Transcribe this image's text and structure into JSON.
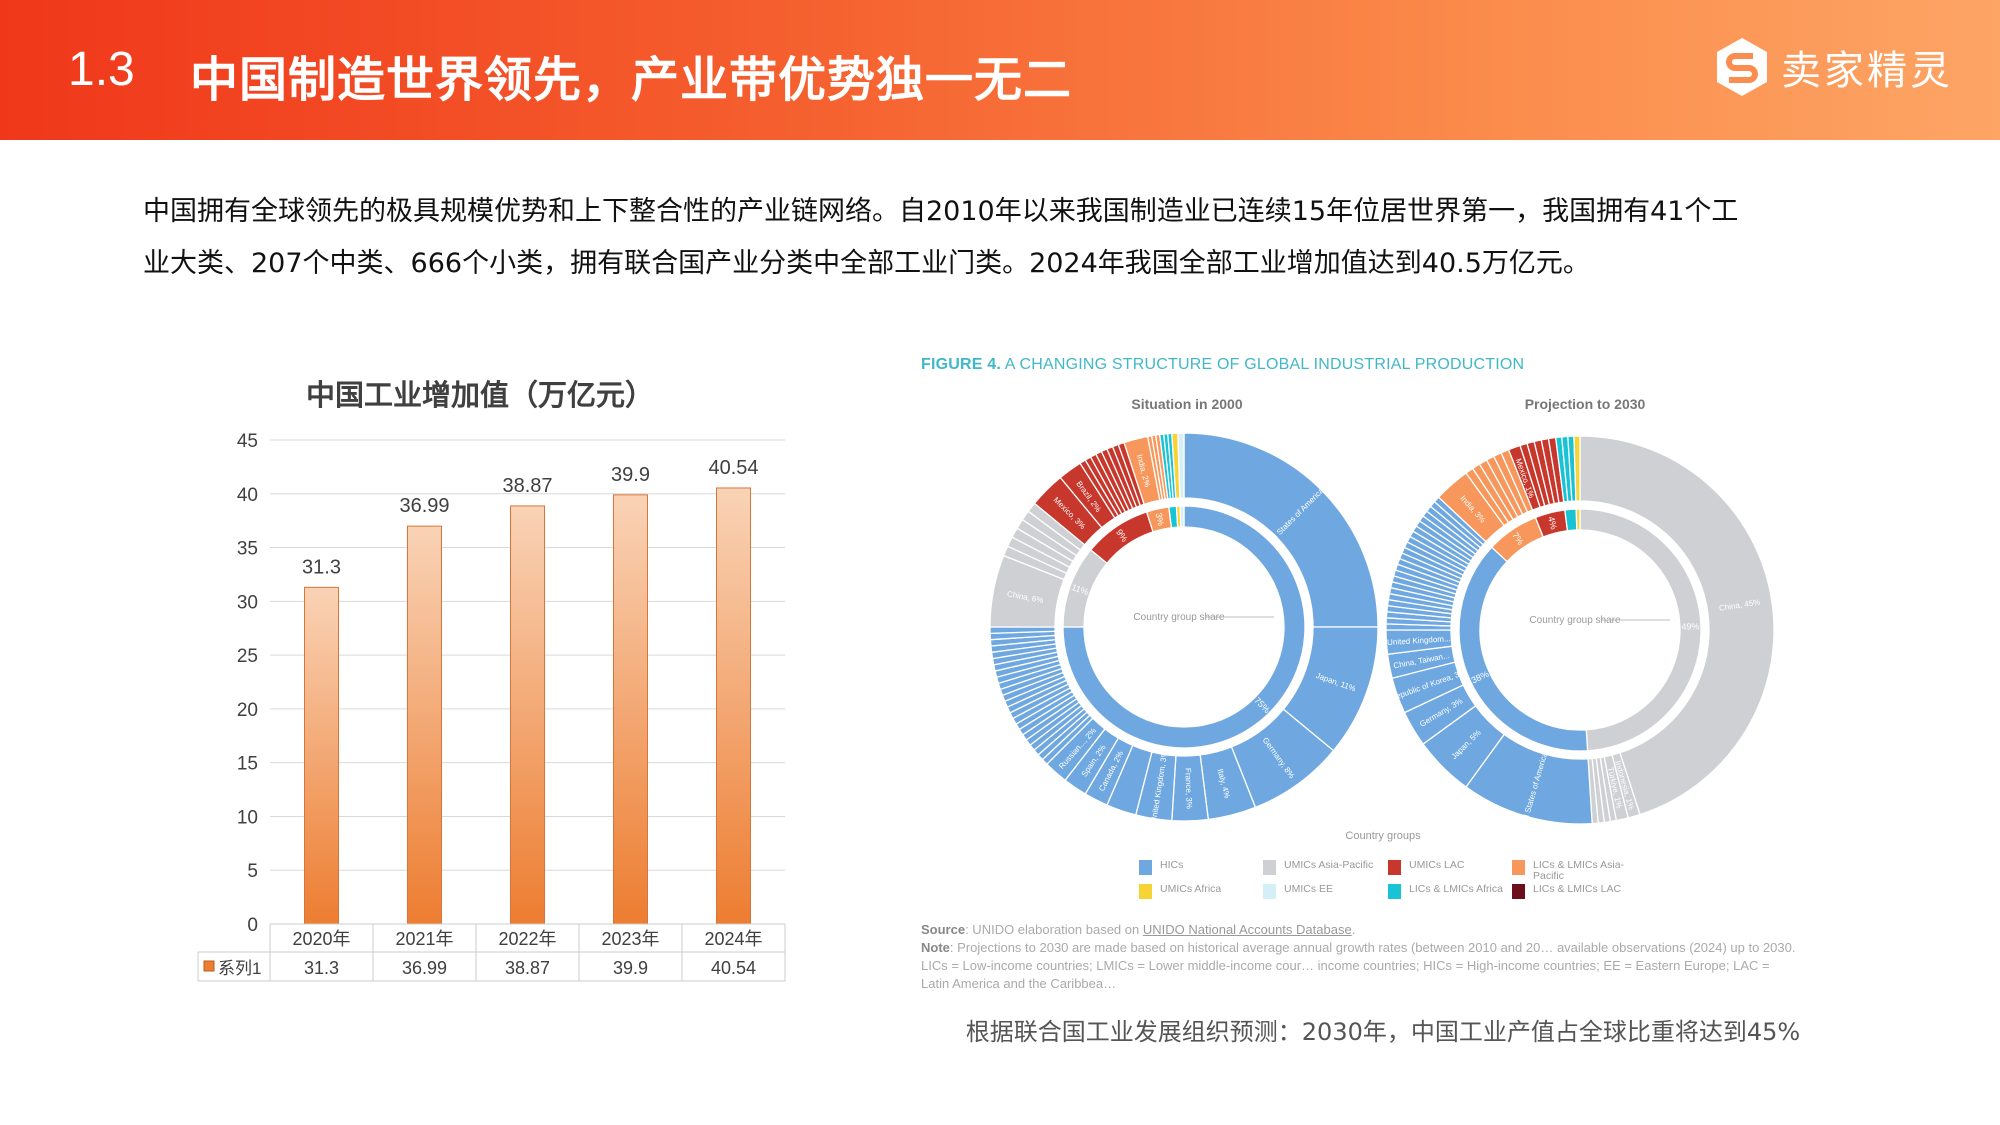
{
  "header": {
    "number": "1.3",
    "title": "中国制造世界领先，产业带优势独一无二",
    "logo_text": "卖家精灵"
  },
  "intro": {
    "line1": "中国拥有全球领先的极具规模优势和上下整合性的产业链网络。自2010年以来我国制造业已连续15年位居世界第一，我国拥有41个工",
    "line2": "业大类、207个中类、666个小类，拥有联合国产业分类中全部工业门类。2024年我国全部工业增加值达到40.5万亿元。"
  },
  "chart_data": [
    {
      "type": "bar",
      "title": "中国工业增加值（万亿元）",
      "categories": [
        "2020年",
        "2021年",
        "2022年",
        "2023年",
        "2024年"
      ],
      "series": [
        {
          "name": "系列1",
          "values": [
            31.3,
            36.99,
            38.87,
            39.9,
            40.54
          ]
        }
      ],
      "value_labels": [
        "31.3",
        "36.99",
        "38.87",
        "39.9",
        "40.54"
      ],
      "ylim": [
        0,
        45
      ],
      "yticks": [
        "0",
        "5",
        "10",
        "15",
        "20",
        "25",
        "30",
        "35",
        "40",
        "45"
      ],
      "grid": true,
      "legend": "data-table",
      "colors": {
        "bar_top": "#f9d3b6",
        "bar_bottom": "#ed7d31"
      }
    },
    {
      "type": "pie",
      "title": "Situation in 2000",
      "center_label": "Country group share",
      "inner": [
        {
          "group": "HICs",
          "value": 75,
          "label": "75%"
        },
        {
          "group": "UMICs Asia-Pacific",
          "value": 11,
          "label": "11%"
        },
        {
          "group": "UMICs LAC",
          "value": 9,
          "label": "9%"
        },
        {
          "group": "LICs & LMICs Asia-Pacific",
          "value": 3,
          "label": "3%"
        },
        {
          "group": "LICs & LMICs Africa",
          "value": 1,
          "label": ""
        },
        {
          "group": "UMICs Africa",
          "value": 0.5,
          "label": ""
        },
        {
          "group": "UMICs EE",
          "value": 0.5,
          "label": ""
        }
      ],
      "outer": [
        {
          "group": "HICs",
          "value": 25,
          "label": "United States of America, 25%"
        },
        {
          "group": "HICs",
          "value": 11,
          "label": "Japan, 11%"
        },
        {
          "group": "HICs",
          "value": 8,
          "label": "Germany, 8%"
        },
        {
          "group": "HICs",
          "value": 4,
          "label": "Italy, 4%"
        },
        {
          "group": "HICs",
          "value": 3,
          "label": "France, 3%"
        },
        {
          "group": "HICs",
          "value": 3,
          "label": "United Kingdom, 3%"
        },
        {
          "group": "HICs",
          "value": 2.5,
          "label": ""
        },
        {
          "group": "HICs",
          "value": 2,
          "label": "Canada, 2%"
        },
        {
          "group": "HICs",
          "value": 2,
          "label": "Spain, 2%"
        },
        {
          "group": "HICs",
          "value": 2,
          "label": "Russian..., 2%"
        },
        {
          "group": "HICs",
          "value": 12.5,
          "label": "",
          "count": 24
        },
        {
          "group": "UMICs Asia-Pacific",
          "value": 6,
          "label": "China, 6%"
        },
        {
          "group": "UMICs Asia-Pacific",
          "value": 5,
          "label": "",
          "count": 6
        },
        {
          "group": "UMICs LAC",
          "value": 3,
          "label": "Mexico, 3%"
        },
        {
          "group": "UMICs LAC",
          "value": 2,
          "label": "Brazil, 2%"
        },
        {
          "group": "UMICs LAC",
          "value": 4,
          "label": "",
          "count": 8
        },
        {
          "group": "LICs & LMICs Asia-Pacific",
          "value": 2,
          "label": "India, 2%"
        },
        {
          "group": "LICs & LMICs Asia-Pacific",
          "value": 1,
          "label": "",
          "count": 3
        },
        {
          "group": "LICs & LMICs Africa",
          "value": 1,
          "label": "",
          "count": 3
        },
        {
          "group": "UMICs Africa",
          "value": 0.5,
          "label": ""
        },
        {
          "group": "UMICs EE",
          "value": 0.5,
          "label": ""
        }
      ]
    },
    {
      "type": "pie",
      "title": "Projection to 2030",
      "center_label": "Country group share",
      "inner": [
        {
          "group": "UMICs Asia-Pacific",
          "value": 49,
          "label": "49%"
        },
        {
          "group": "HICs",
          "value": 38,
          "label": "38%"
        },
        {
          "group": "LICs & LMICs Asia-Pacific",
          "value": 7,
          "label": "7%"
        },
        {
          "group": "UMICs LAC",
          "value": 4,
          "label": "4%"
        },
        {
          "group": "LICs & LMICs Africa",
          "value": 1.5,
          "label": ""
        },
        {
          "group": "UMICs Africa",
          "value": 0.5,
          "label": ""
        }
      ],
      "outer": [
        {
          "group": "UMICs Asia-Pacific",
          "value": 45,
          "label": "China, 45%"
        },
        {
          "group": "UMICs Asia-Pacific",
          "value": 1,
          "label": "Indonesia, 1%"
        },
        {
          "group": "UMICs Asia-Pacific",
          "value": 1,
          "label": "Türkiye, 1%"
        },
        {
          "group": "UMICs Asia-Pacific",
          "value": 2,
          "label": "",
          "count": 4
        },
        {
          "group": "HICs",
          "value": 11,
          "label": "United States of America, 11%"
        },
        {
          "group": "HICs",
          "value": 5,
          "label": "Japan, 5%"
        },
        {
          "group": "HICs",
          "value": 3,
          "label": "Germany, 3%"
        },
        {
          "group": "HICs",
          "value": 3,
          "label": "Republic of Korea, 3%"
        },
        {
          "group": "HICs",
          "value": 2,
          "label": "China, Taiwan..."
        },
        {
          "group": "HICs",
          "value": 2,
          "label": "United Kingdom..."
        },
        {
          "group": "HICs",
          "value": 12,
          "label": "",
          "count": 24
        },
        {
          "group": "LICs & LMICs Asia-Pacific",
          "value": 3,
          "label": "India, 3%"
        },
        {
          "group": "LICs & LMICs Asia-Pacific",
          "value": 4,
          "label": "",
          "count": 6
        },
        {
          "group": "UMICs LAC",
          "value": 1,
          "label": "Mexico, 1%"
        },
        {
          "group": "UMICs LAC",
          "value": 3,
          "label": "",
          "count": 5
        },
        {
          "group": "LICs & LMICs Africa",
          "value": 1.5,
          "label": "",
          "count": 3
        },
        {
          "group": "UMICs Africa",
          "value": 0.5,
          "label": ""
        }
      ]
    }
  ],
  "figure": {
    "title_bold": "FIGURE 4.",
    "title_rest": " A CHANGING STRUCTURE OF GLOBAL INDUSTRIAL PRODUCTION",
    "legend_title": "Country groups",
    "legend": [
      {
        "label": "HICs",
        "color": "#6fa8e0"
      },
      {
        "label": "UMICs Asia-Pacific",
        "color": "#cfd0d4"
      },
      {
        "label": "UMICs LAC",
        "color": "#c8372c"
      },
      {
        "label": "LICs & LMICs Asia-Pacific",
        "color": "#f7975c"
      },
      {
        "label": "UMICs Africa",
        "color": "#f8d334"
      },
      {
        "label": "UMICs EE",
        "color": "#d4f0f6"
      },
      {
        "label": "LICs & LMICs Africa",
        "color": "#19c3d6"
      },
      {
        "label": "LICs & LMICs LAC",
        "color": "#6b0f1f"
      }
    ],
    "source_label": "Source",
    "source_text": ": UNIDO elaboration based on ",
    "source_link": "UNIDO National Accounts Database",
    "source_end": ".",
    "note_label": "Note",
    "note_text": ": Projections to 2030 are made based on historical average annual growth rates (between 2010 and 20… available observations (2024) up to 2030. LICs = Low-income countries; LMICs = Lower middle-income cour… income countries; HICs = High-income countries; EE = Eastern Europe; LAC = Latin America and the Caribbea…"
  },
  "caption": "根据联合国工业发展组织预测：2030年，中国工业产值占全球比重将达到45%"
}
